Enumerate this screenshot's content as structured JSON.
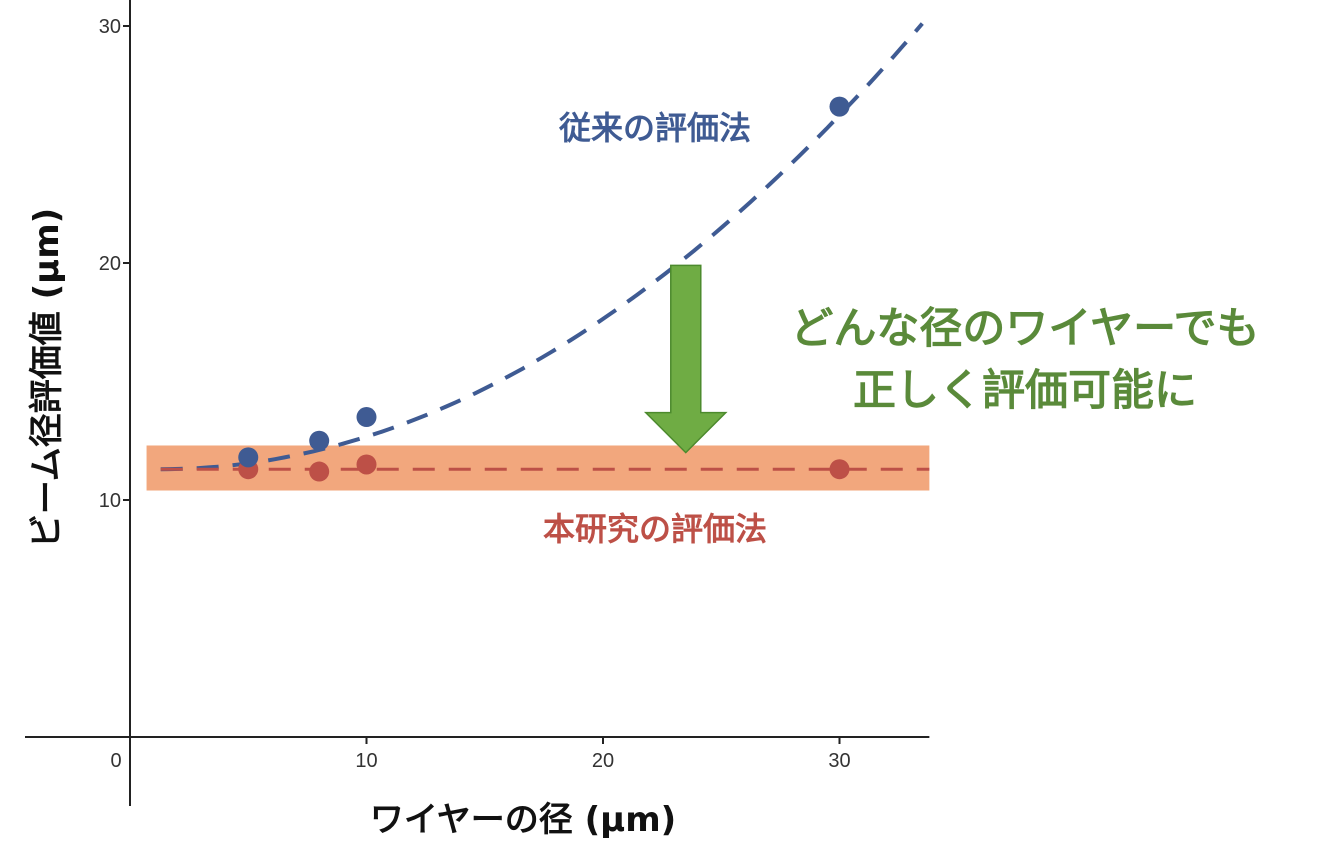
{
  "chart_data": {
    "type": "scatter",
    "x_axis": {
      "label": "ワイヤーの径 (μm)",
      "ticks": [
        0,
        10,
        20,
        30
      ],
      "range": [
        -4.3,
        33.8
      ]
    },
    "y_axis": {
      "label": "ビーム径評価値 (μm)",
      "ticks": [
        10,
        20,
        30
      ],
      "range": [
        0,
        31
      ]
    },
    "grid": false,
    "series": [
      {
        "name": "従来の評価法",
        "color": "#3f5b93",
        "points": [
          {
            "x": 5,
            "y": 11.8
          },
          {
            "x": 8,
            "y": 12.5
          },
          {
            "x": 10,
            "y": 13.5
          },
          {
            "x": 30,
            "y": 26.6
          }
        ],
        "fit_curve": {
          "style": "dashed",
          "x_start": 1.3,
          "x_end": 33.5,
          "y_start": 11.3,
          "y_end": 30.1
        }
      },
      {
        "name": "本研究の評価法",
        "color": "#bd5047",
        "points": [
          {
            "x": 5,
            "y": 11.3
          },
          {
            "x": 8,
            "y": 11.2
          },
          {
            "x": 10,
            "y": 11.5
          },
          {
            "x": 30,
            "y": 11.3
          }
        ],
        "fit_line": {
          "style": "dashed",
          "y": 11.3
        },
        "band": {
          "y_min": 10.4,
          "y_max": 12.3,
          "color": "#f2a77d"
        }
      }
    ],
    "annotations": [
      {
        "text": "どんな径のワイヤーでも",
        "color": "#5a8a3a"
      },
      {
        "text": "正しく評価可能に",
        "color": "#5a8a3a"
      }
    ],
    "arrow": {
      "direction": "down",
      "color": "#6fac44",
      "x": 23.5,
      "y_from": 19.9,
      "y_to": 12.0
    }
  }
}
